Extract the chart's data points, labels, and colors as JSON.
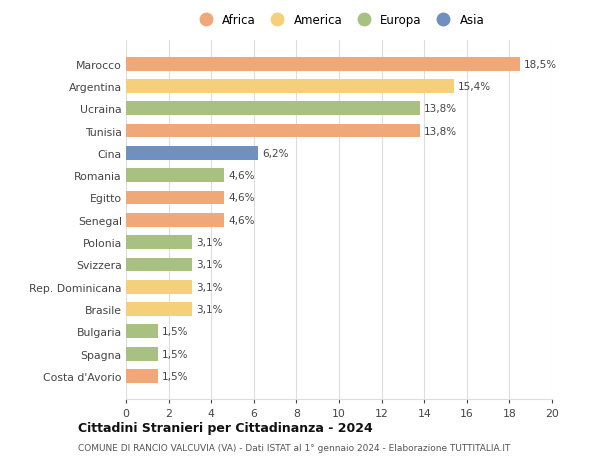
{
  "categories": [
    "Marocco",
    "Argentina",
    "Ucraina",
    "Tunisia",
    "Cina",
    "Romania",
    "Egitto",
    "Senegal",
    "Polonia",
    "Svizzera",
    "Rep. Dominicana",
    "Brasile",
    "Bulgaria",
    "Spagna",
    "Costa d'Avorio"
  ],
  "values": [
    18.5,
    15.4,
    13.8,
    13.8,
    6.2,
    4.6,
    4.6,
    4.6,
    3.1,
    3.1,
    3.1,
    3.1,
    1.5,
    1.5,
    1.5
  ],
  "labels": [
    "18,5%",
    "15,4%",
    "13,8%",
    "13,8%",
    "6,2%",
    "4,6%",
    "4,6%",
    "4,6%",
    "3,1%",
    "3,1%",
    "3,1%",
    "3,1%",
    "1,5%",
    "1,5%",
    "1,5%"
  ],
  "continents": [
    "Africa",
    "America",
    "Europa",
    "Africa",
    "Asia",
    "Europa",
    "Africa",
    "Africa",
    "Europa",
    "Europa",
    "America",
    "America",
    "Europa",
    "Europa",
    "Africa"
  ],
  "colors": {
    "Africa": "#F0A878",
    "America": "#F5D07A",
    "Europa": "#A8C080",
    "Asia": "#7090C0"
  },
  "legend_order": [
    "Africa",
    "America",
    "Europa",
    "Asia"
  ],
  "title": "Cittadini Stranieri per Cittadinanza - 2024",
  "subtitle": "COMUNE DI RANCIO VALCUVIA (VA) - Dati ISTAT al 1° gennaio 2024 - Elaborazione TUTTITALIA.IT",
  "xlim": [
    0,
    20
  ],
  "xticks": [
    0,
    2,
    4,
    6,
    8,
    10,
    12,
    14,
    16,
    18,
    20
  ],
  "background_color": "#ffffff",
  "grid_color": "#dddddd"
}
